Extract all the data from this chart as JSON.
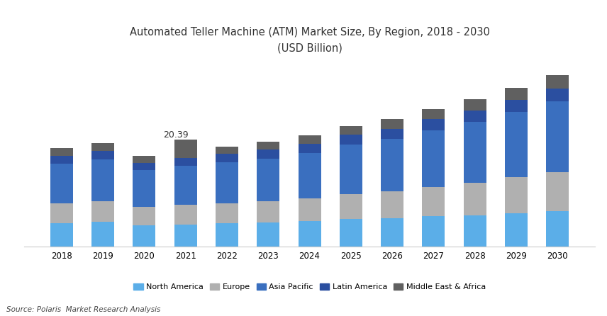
{
  "title_line1": "Automated Teller Machine (ATM) Market Size, By Region, 2018 - 2030",
  "title_line2": "(USD Billion)",
  "source": "Source: Polaris  Market Research Analysis",
  "years": [
    2018,
    2019,
    2020,
    2021,
    2022,
    2023,
    2024,
    2025,
    2026,
    2027,
    2028,
    2029,
    2030
  ],
  "annotation_year": 2021,
  "annotation_text": "20.39",
  "regions": [
    "North America",
    "Europe",
    "Asia Pacific",
    "Latin America",
    "Middle East & Africa"
  ],
  "colors": [
    "#5BAEE8",
    "#B0B0B0",
    "#3A6FBF",
    "#2B4FA0",
    "#606060"
  ],
  "data": {
    "North America": [
      4.5,
      4.7,
      4.1,
      4.2,
      4.4,
      4.6,
      4.8,
      5.2,
      5.4,
      5.8,
      6.0,
      6.3,
      6.7
    ],
    "Europe": [
      3.8,
      4.0,
      3.5,
      3.7,
      3.9,
      4.1,
      4.4,
      4.8,
      5.1,
      5.6,
      6.2,
      6.9,
      7.5
    ],
    "Asia Pacific": [
      7.5,
      7.9,
      7.0,
      7.5,
      7.8,
      8.1,
      8.6,
      9.4,
      10.0,
      10.8,
      11.6,
      12.5,
      13.5
    ],
    "Latin America": [
      1.5,
      1.6,
      1.4,
      1.5,
      1.6,
      1.7,
      1.8,
      1.9,
      2.0,
      2.1,
      2.2,
      2.3,
      2.5
    ],
    "Middle East & Africa": [
      1.5,
      1.6,
      1.3,
      3.49,
      1.4,
      1.5,
      1.6,
      1.7,
      1.8,
      1.9,
      2.1,
      2.3,
      2.5
    ]
  },
  "ylim": [
    0,
    35
  ],
  "bar_width": 0.55,
  "legend_ncol": 5,
  "figsize": [
    8.56,
    4.46
  ],
  "dpi": 100,
  "bg_color": "#FFFFFF",
  "title_fontsize": 10.5,
  "tick_fontsize": 8.5,
  "legend_fontsize": 8,
  "source_fontsize": 7.5
}
